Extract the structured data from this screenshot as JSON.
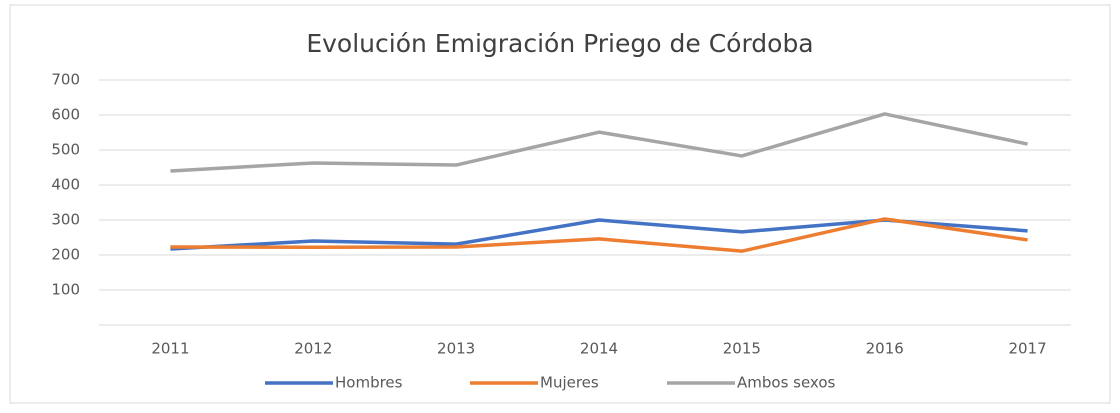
{
  "chart_data": {
    "type": "line",
    "title": "Evolución Emigración Priego de Córdoba",
    "categories": [
      "2011",
      "2012",
      "2013",
      "2014",
      "2015",
      "2016",
      "2017"
    ],
    "series": [
      {
        "name": "Hombres",
        "color": "#4472c4",
        "values": [
          217,
          240,
          231,
          300,
          266,
          300,
          269
        ]
      },
      {
        "name": "Mujeres",
        "color": "#ed7d31",
        "values": [
          223,
          222,
          223,
          246,
          211,
          303,
          243
        ]
      },
      {
        "name": "Ambos sexos",
        "color": "#a5a5a5",
        "values": [
          440,
          463,
          457,
          551,
          483,
          603,
          517
        ]
      }
    ],
    "ylim": [
      0,
      700
    ],
    "yticks": [
      100,
      200,
      300,
      400,
      500,
      600,
      700
    ],
    "grid": true,
    "legend": "bottom"
  }
}
